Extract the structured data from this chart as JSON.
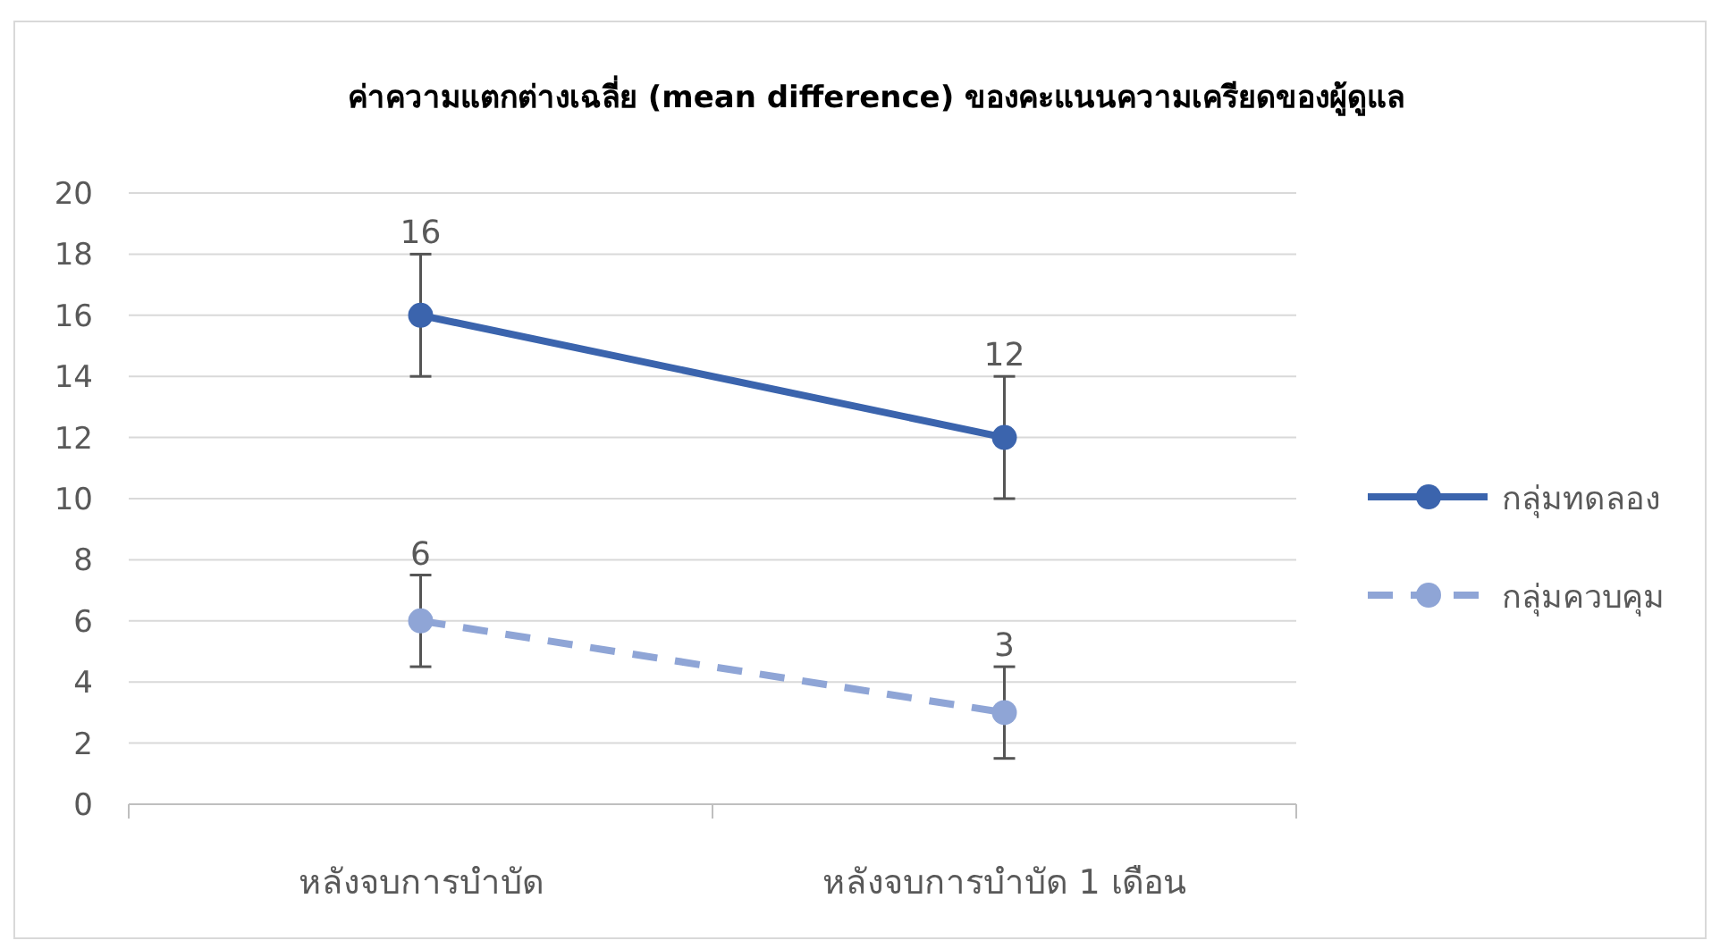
{
  "chart_data": {
    "type": "line",
    "title": "ค่าความแตกต่างเฉลี่ย (mean difference) ของคะแนนความเครียดของผู้ดูแล",
    "categories": [
      "หลังจบการบำบัด",
      "หลังจบการบำบัด 1 เดือน"
    ],
    "series": [
      {
        "name": "กลุ่มทดลอง",
        "color": "#3b64ad",
        "values": [
          16,
          12
        ],
        "errors": [
          2,
          2
        ],
        "line_style": "solid"
      },
      {
        "name": "กลุ่มควบคุม",
        "color": "#8fa5d6",
        "values": [
          6,
          3
        ],
        "errors": [
          1.5,
          1.5
        ],
        "line_style": "dashed"
      }
    ],
    "ylim": [
      0,
      20
    ],
    "yticks": [
      0,
      2,
      4,
      6,
      8,
      10,
      12,
      14,
      16,
      18,
      20
    ],
    "grid": "y",
    "legend": "right",
    "marker": "circle",
    "data_labels": true
  }
}
